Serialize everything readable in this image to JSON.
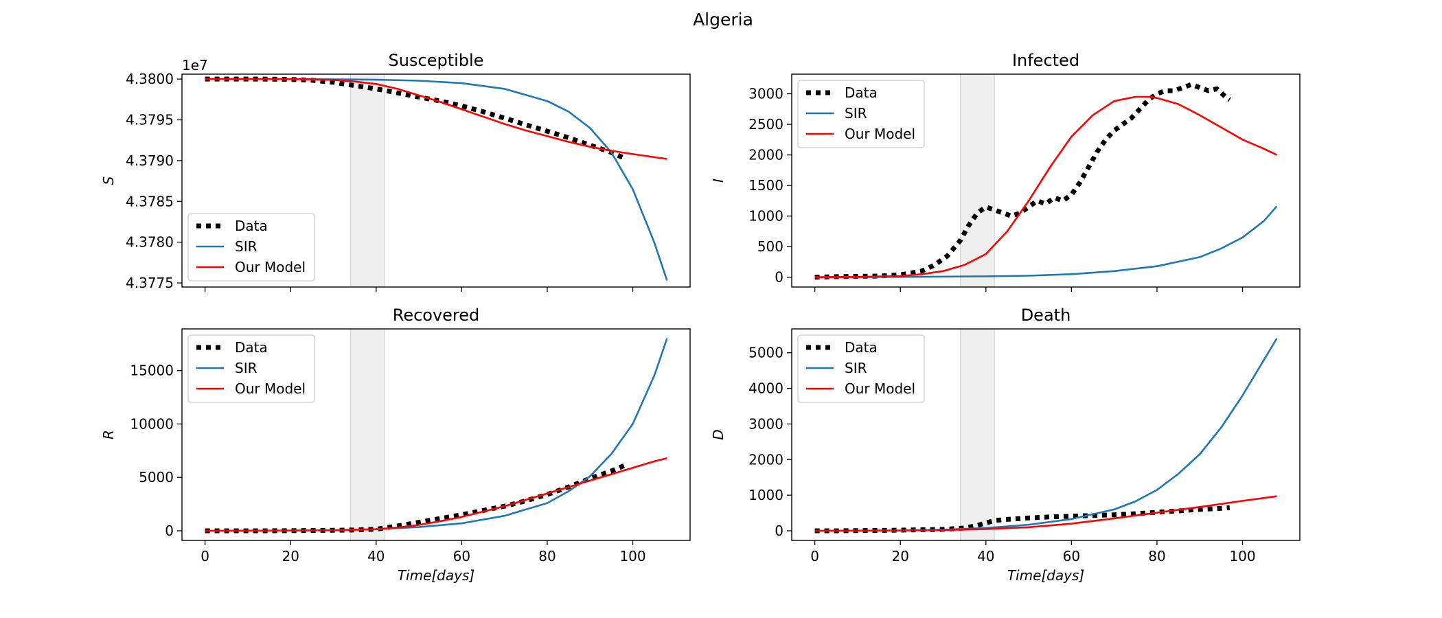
{
  "figure_title": "Algeria",
  "colors": {
    "data": "#000000",
    "sir": "#1f77b4",
    "model": "#ff0000",
    "shade": "#d9d9d9"
  },
  "chart_data": [
    {
      "type": "line",
      "title": "Susceptible",
      "xlabel": "",
      "ylabel": "S",
      "y_offset_label": "1e7",
      "xlim": [
        -5.4,
        113.4
      ],
      "ylim": [
        43774500,
        43800600
      ],
      "xticks": [
        0,
        20,
        40,
        60,
        80,
        100
      ],
      "xtick_labels": [
        "",
        "",
        "",
        "",
        "",
        ""
      ],
      "yticks": [
        43775000,
        43780000,
        43785000,
        43790000,
        43795000,
        43800000
      ],
      "ytick_labels": [
        "4.3775",
        "4.3780",
        "4.3785",
        "4.3790",
        "4.3795",
        "4.3800"
      ],
      "shaded_x": [
        34,
        42
      ],
      "legend_position": "lower-left",
      "series": [
        {
          "name": "Data",
          "style": "dotted",
          "color": "#000000",
          "x": [
            0,
            5,
            10,
            15,
            20,
            25,
            30,
            35,
            40,
            45,
            50,
            55,
            60,
            65,
            70,
            75,
            80,
            85,
            90,
            95,
            98
          ],
          "y": [
            43800000,
            43800000,
            43800000,
            43799990,
            43799950,
            43799850,
            43799600,
            43799200,
            43798800,
            43798300,
            43797800,
            43797300,
            43796700,
            43796000,
            43795200,
            43794400,
            43793600,
            43792800,
            43791900,
            43791000,
            43790300
          ]
        },
        {
          "name": "SIR",
          "style": "solid",
          "color": "#1f77b4",
          "x": [
            0,
            10,
            20,
            30,
            40,
            50,
            60,
            70,
            80,
            85,
            90,
            95,
            100,
            105,
            108
          ],
          "y": [
            43800000,
            43800000,
            43799990,
            43799970,
            43799920,
            43799800,
            43799500,
            43798800,
            43797300,
            43796000,
            43794000,
            43791000,
            43786500,
            43780000,
            43775300
          ]
        },
        {
          "name": "Our Model",
          "style": "solid",
          "color": "#ff0000",
          "x": [
            0,
            10,
            20,
            30,
            35,
            40,
            45,
            50,
            55,
            60,
            65,
            70,
            75,
            80,
            85,
            90,
            95,
            100,
            108
          ],
          "y": [
            43800000,
            43800000,
            43799990,
            43799900,
            43799700,
            43799400,
            43798800,
            43798000,
            43797200,
            43796300,
            43795400,
            43794500,
            43793700,
            43793000,
            43792300,
            43791700,
            43791200,
            43790800,
            43790200
          ]
        }
      ]
    },
    {
      "type": "line",
      "title": "Infected",
      "xlabel": "",
      "ylabel": "I",
      "xlim": [
        -5.4,
        113.4
      ],
      "ylim": [
        -160,
        3320
      ],
      "xticks": [
        0,
        20,
        40,
        60,
        80,
        100
      ],
      "xtick_labels": [
        "",
        "",
        "",
        "",
        "",
        ""
      ],
      "yticks": [
        0,
        500,
        1000,
        1500,
        2000,
        2500,
        3000
      ],
      "ytick_labels": [
        "0",
        "500",
        "1000",
        "1500",
        "2000",
        "2500",
        "3000"
      ],
      "shaded_x": [
        34,
        42
      ],
      "legend_position": "upper-left",
      "series": [
        {
          "name": "Data",
          "style": "dotted",
          "color": "#000000",
          "x": [
            0,
            5,
            10,
            15,
            20,
            25,
            28,
            31,
            34,
            36,
            38,
            40,
            42,
            44,
            46,
            48,
            50,
            52,
            54,
            56,
            58,
            60,
            62,
            64,
            66,
            68,
            70,
            72,
            74,
            76,
            78,
            80,
            82,
            84,
            86,
            88,
            90,
            92,
            94,
            96,
            97
          ],
          "y": [
            0,
            10,
            15,
            20,
            40,
            100,
            200,
            350,
            600,
            850,
            1050,
            1150,
            1100,
            1050,
            1000,
            1050,
            1150,
            1250,
            1200,
            1300,
            1250,
            1350,
            1550,
            1800,
            2050,
            2250,
            2400,
            2500,
            2600,
            2750,
            2900,
            3000,
            3050,
            3050,
            3100,
            3150,
            3100,
            3050,
            3080,
            2950,
            2900
          ]
        },
        {
          "name": "SIR",
          "style": "solid",
          "color": "#1f77b4",
          "x": [
            0,
            20,
            40,
            50,
            60,
            70,
            80,
            90,
            95,
            100,
            105,
            108
          ],
          "y": [
            0,
            5,
            15,
            25,
            50,
            100,
            180,
            330,
            470,
            650,
            920,
            1160
          ]
        },
        {
          "name": "Our Model",
          "style": "solid",
          "color": "#ff0000",
          "x": [
            0,
            10,
            20,
            25,
            30,
            35,
            40,
            45,
            50,
            55,
            60,
            65,
            70,
            75,
            78,
            80,
            85,
            90,
            95,
            100,
            105,
            108
          ],
          "y": [
            0,
            5,
            20,
            50,
            100,
            200,
            380,
            750,
            1250,
            1800,
            2300,
            2650,
            2880,
            2950,
            2950,
            2930,
            2830,
            2650,
            2450,
            2250,
            2100,
            2000
          ]
        }
      ]
    },
    {
      "type": "line",
      "title": "Recovered",
      "xlabel": "Time[days]",
      "ylabel": "R",
      "xlim": [
        -5.4,
        113.4
      ],
      "ylim": [
        -900,
        18900
      ],
      "xticks": [
        0,
        20,
        40,
        60,
        80,
        100
      ],
      "xtick_labels": [
        "0",
        "20",
        "40",
        "60",
        "80",
        "100"
      ],
      "yticks": [
        0,
        5000,
        10000,
        15000
      ],
      "ytick_labels": [
        "0",
        "5000",
        "10000",
        "15000"
      ],
      "shaded_x": [
        34,
        42
      ],
      "legend_position": "upper-left",
      "series": [
        {
          "name": "Data",
          "style": "dotted",
          "color": "#000000",
          "x": [
            0,
            5,
            10,
            15,
            20,
            25,
            30,
            35,
            40,
            45,
            50,
            55,
            60,
            65,
            70,
            75,
            80,
            85,
            90,
            95,
            98
          ],
          "y": [
            0,
            0,
            0,
            0,
            10,
            30,
            50,
            80,
            150,
            450,
            800,
            1150,
            1500,
            1900,
            2300,
            2800,
            3400,
            4100,
            4900,
            5600,
            6100
          ]
        },
        {
          "name": "SIR",
          "style": "solid",
          "color": "#1f77b4",
          "x": [
            0,
            20,
            30,
            40,
            50,
            60,
            70,
            80,
            85,
            90,
            95,
            100,
            105,
            108
          ],
          "y": [
            0,
            20,
            60,
            150,
            350,
            700,
            1400,
            2600,
            3700,
            5100,
            7200,
            10000,
            14500,
            18000
          ]
        },
        {
          "name": "Our Model",
          "style": "solid",
          "color": "#ff0000",
          "x": [
            0,
            20,
            30,
            40,
            45,
            50,
            55,
            60,
            65,
            70,
            75,
            80,
            85,
            90,
            95,
            100,
            105,
            108
          ],
          "y": [
            0,
            20,
            50,
            150,
            300,
            550,
            900,
            1300,
            1800,
            2300,
            2900,
            3500,
            4100,
            4700,
            5300,
            5900,
            6500,
            6800
          ]
        }
      ]
    },
    {
      "type": "line",
      "title": "Death",
      "xlabel": "Time[days]",
      "ylabel": "D",
      "xlim": [
        -5.4,
        113.4
      ],
      "ylim": [
        -270,
        5670
      ],
      "xticks": [
        0,
        20,
        40,
        60,
        80,
        100
      ],
      "xtick_labels": [
        "0",
        "20",
        "40",
        "60",
        "80",
        "100"
      ],
      "yticks": [
        0,
        1000,
        2000,
        3000,
        4000,
        5000
      ],
      "ytick_labels": [
        "0",
        "1000",
        "2000",
        "3000",
        "4000",
        "5000"
      ],
      "shaded_x": [
        34,
        42
      ],
      "legend_position": "upper-left",
      "series": [
        {
          "name": "Data",
          "style": "dotted",
          "color": "#000000",
          "x": [
            0,
            5,
            10,
            15,
            20,
            25,
            30,
            35,
            38,
            40,
            42,
            45,
            50,
            55,
            60,
            65,
            70,
            75,
            80,
            85,
            90,
            95,
            97
          ],
          "y": [
            0,
            0,
            5,
            10,
            20,
            30,
            40,
            80,
            150,
            220,
            290,
            320,
            360,
            390,
            410,
            430,
            450,
            480,
            520,
            560,
            600,
            630,
            650
          ]
        },
        {
          "name": "SIR",
          "style": "solid",
          "color": "#1f77b4",
          "x": [
            0,
            20,
            30,
            40,
            50,
            60,
            70,
            75,
            80,
            85,
            90,
            95,
            100,
            105,
            108
          ],
          "y": [
            0,
            10,
            30,
            80,
            170,
            330,
            600,
            830,
            1150,
            1600,
            2150,
            2900,
            3800,
            4800,
            5400
          ]
        },
        {
          "name": "Our Model",
          "style": "solid",
          "color": "#ff0000",
          "x": [
            0,
            20,
            30,
            40,
            50,
            60,
            70,
            80,
            90,
            100,
            108
          ],
          "y": [
            0,
            5,
            20,
            50,
            100,
            200,
            350,
            510,
            670,
            840,
            970
          ]
        }
      ]
    }
  ]
}
